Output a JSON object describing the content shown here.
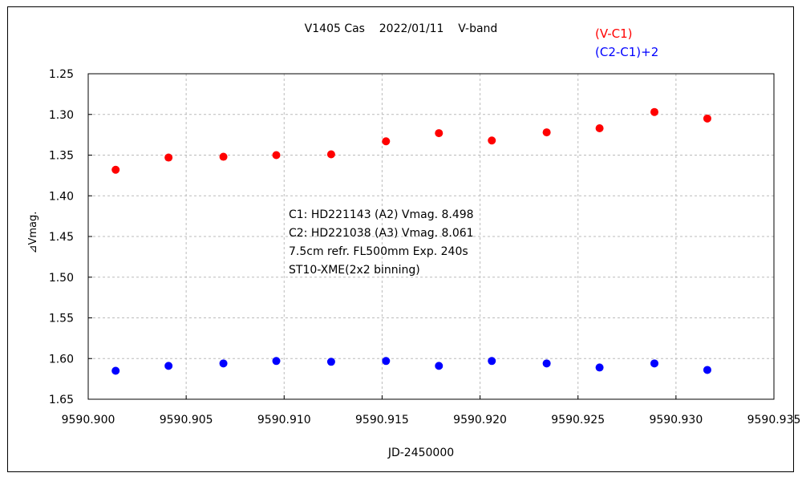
{
  "chart_data": {
    "type": "scatter",
    "title": "V1405 Cas    2022/01/11    V-band",
    "xlabel": "JD-2450000",
    "ylabel": "⊿Vmag.",
    "xlim": [
      9590.9,
      9590.935
    ],
    "ylim": [
      1.25,
      1.65
    ],
    "y_inverted": true,
    "grid": true,
    "x_ticks": [
      "9590.900",
      "9590.905",
      "9590.910",
      "9590.915",
      "9590.920",
      "9590.925",
      "9590.930",
      "9590.935"
    ],
    "y_ticks": [
      "1.25",
      "1.30",
      "1.35",
      "1.40",
      "1.45",
      "1.50",
      "1.55",
      "1.60",
      "1.65"
    ],
    "legend_position": "top-right",
    "x": [
      9590.9014,
      9590.9041,
      9590.9069,
      9590.9096,
      9590.9124,
      9590.9152,
      9590.9179,
      9590.9206,
      9590.9234,
      9590.9261,
      9590.9289,
      9590.9316
    ],
    "series": [
      {
        "name": "(V-C1)",
        "color": "#ff0000",
        "values": [
          1.368,
          1.353,
          1.352,
          1.35,
          1.349,
          1.333,
          1.323,
          1.332,
          1.322,
          1.317,
          1.297,
          1.305
        ]
      },
      {
        "name": "(C2-C1)+2",
        "color": "#0000ff",
        "values": [
          1.615,
          1.609,
          1.606,
          1.603,
          1.604,
          1.603,
          1.609,
          1.603,
          1.606,
          1.611,
          1.606,
          1.614
        ]
      }
    ],
    "annotations": [
      "C1: HD221143 (A2) Vmag. 8.498",
      "C2: HD221038 (A3) Vmag. 8.061",
      "7.5cm refr. FL500mm Exp. 240s",
      "ST10-XME(2x2 binning)"
    ]
  }
}
